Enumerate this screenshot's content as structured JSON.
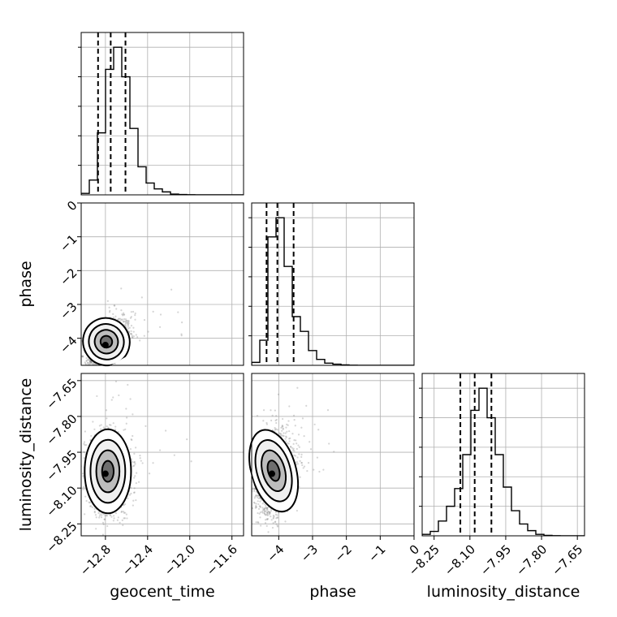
{
  "chart_data": {
    "type": "corner",
    "parameters": [
      "geocent_time",
      "phase",
      "luminosity_distance"
    ],
    "axes": {
      "geocent_time": {
        "label": "geocent_time",
        "range": [
          -13.03,
          -11.49
        ],
        "ticks": [
          -12.8,
          -12.4,
          -12.0,
          -11.6
        ],
        "tick_labels": [
          "−12.8",
          "−12.4",
          "−12.0",
          "−11.6"
        ]
      },
      "phase": {
        "label": "phase",
        "range": [
          -4.8,
          0.0
        ],
        "ticks": [
          -4,
          -3,
          -2,
          -1,
          0
        ],
        "tick_labels": [
          "−4",
          "−3",
          "−2",
          "−1",
          "0"
        ]
      },
      "luminosity_distance": {
        "label": "luminosity_distance",
        "range": [
          -8.3,
          -7.62
        ],
        "ticks": [
          -8.25,
          -8.1,
          -7.95,
          -7.8,
          -7.65
        ],
        "tick_labels": [
          "−8.25",
          "−8.10",
          "−7.95",
          "−7.80",
          "−7.65"
        ]
      }
    },
    "histograms": [
      {
        "parameter": "geocent_time",
        "bin_edges": [
          -13.03,
          -12.953,
          -12.876,
          -12.799,
          -12.722,
          -12.645,
          -12.568,
          -12.491,
          -12.414,
          -12.337,
          -12.26,
          -12.183,
          -12.106,
          -12.029,
          -11.952,
          -11.875,
          -11.798,
          -11.721,
          -11.644,
          -11.567,
          -11.49
        ],
        "counts": [
          1.0,
          10.0,
          42.0,
          85.0,
          100.0,
          80.0,
          45.0,
          19.0,
          8.0,
          4.0,
          2.0,
          0.5,
          0.2,
          0.1,
          0.05,
          0.0,
          0.0,
          0.0,
          0.0,
          0.0
        ],
        "quantiles": [
          -12.87,
          -12.75,
          -12.61
        ]
      },
      {
        "parameter": "phase",
        "bin_edges": [
          -4.8,
          -4.56,
          -4.32,
          -4.08,
          -3.84,
          -3.6,
          -3.36,
          -3.12,
          -2.88,
          -2.64,
          -2.4,
          -2.16,
          -1.92,
          -1.68,
          -1.44,
          -1.2,
          -0.96,
          -0.72,
          -0.48,
          -0.24,
          0.0
        ],
        "counts": [
          2.0,
          17.0,
          87.0,
          100.0,
          67.0,
          33.0,
          23.0,
          10.0,
          4.0,
          1.5,
          0.8,
          0.3,
          0.1,
          0.0,
          0.0,
          0.0,
          0.0,
          0.0,
          0.0,
          0.0
        ],
        "quantiles": [
          -4.36,
          -4.04,
          -3.56
        ]
      },
      {
        "parameter": "luminosity_distance",
        "bin_edges": [
          -8.3,
          -8.266,
          -8.232,
          -8.198,
          -8.164,
          -8.13,
          -8.096,
          -8.062,
          -8.028,
          -7.994,
          -7.96,
          -7.926,
          -7.892,
          -7.858,
          -7.824,
          -7.79,
          -7.756,
          -7.722,
          -7.688,
          -7.654,
          -7.62
        ],
        "counts": [
          1.0,
          3.0,
          10.0,
          20.0,
          32.0,
          55.0,
          85.0,
          100.0,
          80.0,
          55.0,
          33.0,
          17.0,
          8.0,
          3.5,
          1.0,
          0.3,
          0.1,
          0.0,
          0.0,
          0.0
        ],
        "quantiles": [
          -8.14,
          -8.08,
          -8.01
        ]
      }
    ],
    "joint_distributions": [
      {
        "x": "geocent_time",
        "y": "phase",
        "peak": [
          -12.8,
          -4.2
        ],
        "sigma": [
          0.1,
          0.32
        ],
        "correlation": 0.55
      },
      {
        "x": "geocent_time",
        "y": "luminosity_distance",
        "peak": [
          -12.8,
          -8.04
        ],
        "sigma": [
          0.1,
          0.08
        ],
        "correlation": 0.0
      },
      {
        "x": "phase",
        "y": "luminosity_distance",
        "peak": [
          -4.2,
          -8.04
        ],
        "sigma": [
          0.3,
          0.08
        ],
        "correlation": 0.15
      }
    ],
    "contour_levels_sigma": [
      0.5,
      1.0,
      1.5,
      2.0
    ],
    "grid": true,
    "colors": {
      "line": "#000000",
      "grid": "#b0b0b0",
      "scatter": "#888888",
      "fill": "#ffffff"
    }
  }
}
